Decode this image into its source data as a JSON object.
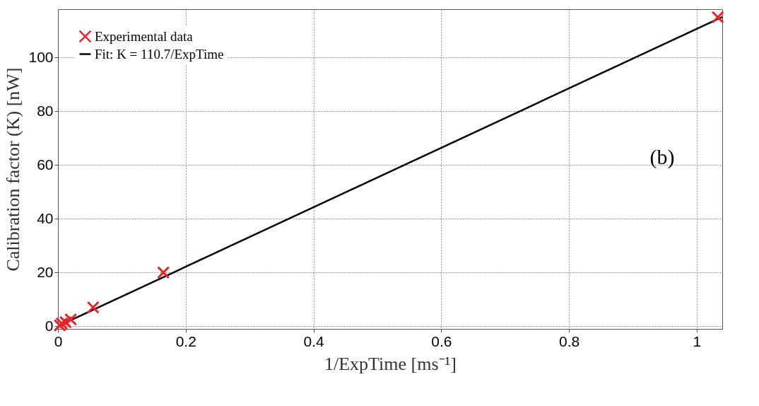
{
  "chart_data": {
    "type": "scatter",
    "xlabel": "1/ExpTime [ms⁻¹]",
    "ylabel": "Calibration factor (K) [nW]",
    "xlim": [
      0,
      1.04
    ],
    "ylim": [
      -1,
      118
    ],
    "xticks": [
      0,
      0.2,
      0.4,
      0.6,
      0.8,
      1
    ],
    "yticks": [
      0,
      20,
      40,
      60,
      80,
      100
    ],
    "grid": true,
    "legend": "top left",
    "annotations": [
      "(b)"
    ],
    "series": [
      {
        "name": "Experimental data",
        "marker": "cross",
        "color": "#e8242b",
        "x": [
          0.003,
          0.006,
          0.012,
          0.02,
          0.055,
          0.165,
          1.033
        ],
        "values": [
          0.3,
          1,
          1.5,
          2.5,
          7,
          20,
          115
        ]
      },
      {
        "name": "Fit: K = 110.7/ExpTime",
        "type": "line",
        "marker": "none",
        "line_style": "solid",
        "color": "#000000",
        "x": [
          0,
          1.04
        ],
        "values": [
          0,
          115.1
        ]
      }
    ]
  }
}
